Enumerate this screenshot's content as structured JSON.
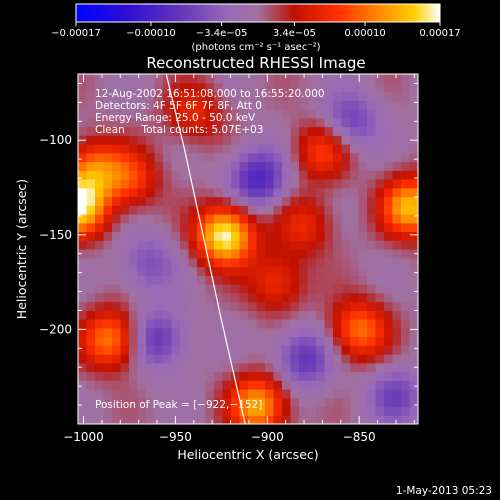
{
  "chart_data": {
    "type": "heatmap",
    "title": "Reconstructed RHESSI Image",
    "xlabel": "Heliocentric X (arcsec)",
    "ylabel": "Heliocentric Y (arcsec)",
    "xlim": [
      -1003,
      -818
    ],
    "ylim": [
      -250,
      -65
    ],
    "xticks": [
      -1000,
      -950,
      -900,
      -850
    ],
    "xtick_labels": [
      "−1000",
      "−950",
      "−900",
      "−850"
    ],
    "yticks": [
      -100,
      -150,
      -200
    ],
    "ytick_labels": [
      "−100",
      "−150",
      "−200"
    ],
    "colorbar": {
      "vmin": -0.00017,
      "vmax": 0.00017,
      "ticks": [
        -0.00017,
        -0.0001,
        -3.4e-05,
        3.4e-05,
        0.0001,
        0.00017
      ],
      "tick_labels": [
        "−0.00017",
        "−0.00010",
        "−3.4e−05",
        "3.4e−05",
        "0.00010",
        "0.00017"
      ],
      "unit_label": "(photons cm⁻² s⁻¹ asec⁻²)",
      "colors": [
        "#0000ff",
        "#5a1fa5",
        "#8a5ab8",
        "#a070b0",
        "#c01000",
        "#ff3000",
        "#ff9000",
        "#ffd000",
        "#ffffff"
      ]
    },
    "annotations": [
      "12-Aug-2002 16:51:08.000 to 16:55:20.000",
      "Detectors: 4F 5F 6F 7F 8F, Att 0",
      "Energy Range: 25.0 - 50.0 keV",
      "Clean     Total counts: 5.07E+03"
    ],
    "peak_label": "Position of Peak = [−922,−152]",
    "peak": [
      -922,
      -152
    ],
    "limb_curve": [
      [
        -955,
        -65
      ],
      [
        -945,
        -105
      ],
      [
        -935,
        -150
      ],
      [
        -925,
        -195
      ],
      [
        -912,
        -250
      ]
    ],
    "sources": [
      {
        "x": -923,
        "y": -150,
        "amp": 1.0
      },
      {
        "x": -1003,
        "y": -135,
        "amp": 0.9
      },
      {
        "x": -995,
        "y": -115,
        "amp": 0.55
      },
      {
        "x": -985,
        "y": -205,
        "amp": 0.65
      },
      {
        "x": -975,
        "y": -120,
        "amp": 0.45
      },
      {
        "x": -905,
        "y": -240,
        "amp": 0.75
      },
      {
        "x": -895,
        "y": -175,
        "amp": 0.4
      },
      {
        "x": -880,
        "y": -145,
        "amp": 0.35
      },
      {
        "x": -870,
        "y": -105,
        "amp": 0.45
      },
      {
        "x": -850,
        "y": -200,
        "amp": 0.6
      },
      {
        "x": -822,
        "y": -135,
        "amp": 0.8
      },
      {
        "x": -940,
        "y": -85,
        "amp": 0.35
      },
      {
        "x": -965,
        "y": -165,
        "amp": -0.3
      },
      {
        "x": -960,
        "y": -205,
        "amp": -0.45
      },
      {
        "x": -905,
        "y": -120,
        "amp": -0.55
      },
      {
        "x": -880,
        "y": -215,
        "amp": -0.45
      },
      {
        "x": -855,
        "y": -90,
        "amp": -0.4
      },
      {
        "x": -830,
        "y": -235,
        "amp": -0.35
      }
    ]
  },
  "footer": {
    "timestamp": "1-May-2013 05:23"
  }
}
